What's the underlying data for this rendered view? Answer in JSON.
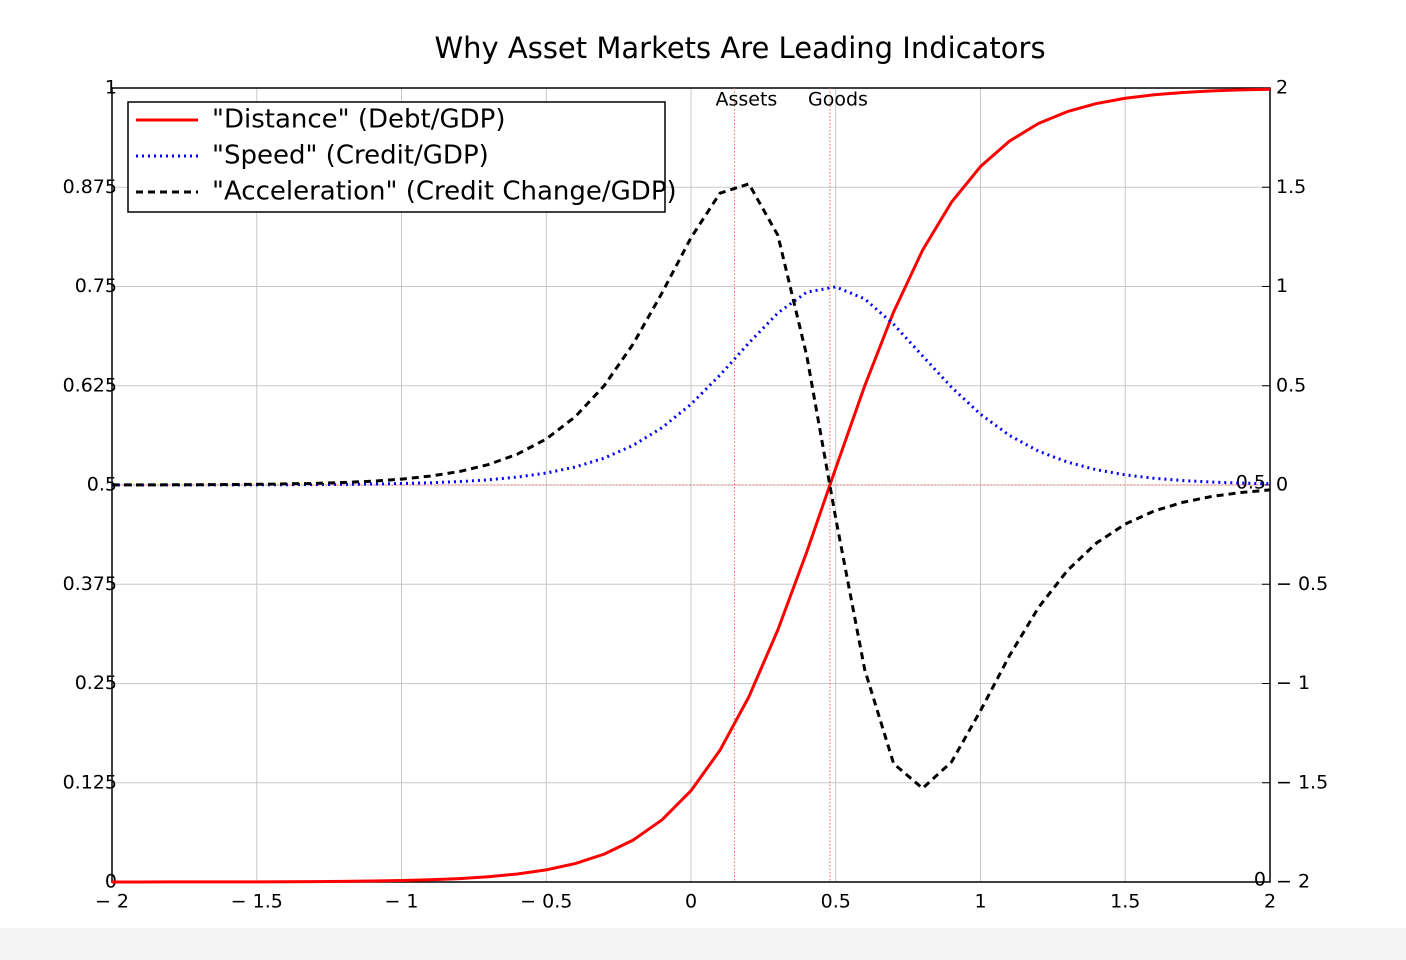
{
  "chart_data": {
    "type": "line",
    "title": "Why Asset Markets Are Leading Indicators",
    "x": [
      -2,
      -1.9,
      -1.8,
      -1.7,
      -1.6,
      -1.5,
      -1.4,
      -1.3,
      -1.2,
      -1.1,
      -1,
      -0.9,
      -0.8,
      -0.7,
      -0.6,
      -0.5,
      -0.4,
      -0.3,
      -0.2,
      -0.1,
      0,
      0.1,
      0.2,
      0.3,
      0.4,
      0.5,
      0.6,
      0.7,
      0.8,
      0.9,
      1,
      1.1,
      1.2,
      1.3,
      1.4,
      1.5,
      1.6,
      1.7,
      1.8,
      1.9,
      2
    ],
    "series": [
      {
        "name": "\"Distance\" (Debt/GDP)",
        "color": "#ff0000",
        "dash": "solid",
        "axis": "y",
        "values": [
          0,
          0,
          0.0001,
          0.0001,
          0.0001,
          0.0002,
          0.0003,
          0.0005,
          0.0008,
          0.0012,
          0.0019,
          0.0028,
          0.0043,
          0.0066,
          0.0101,
          0.0153,
          0.0232,
          0.0351,
          0.0527,
          0.0783,
          0.115,
          0.1659,
          0.2333,
          0.3175,
          0.4158,
          0.5212,
          0.6248,
          0.7181,
          0.7958,
          0.8563,
          0.9011,
          0.9331,
          0.9553,
          0.9703,
          0.9804,
          0.9871,
          0.9915,
          0.9944,
          0.9964,
          0.9976,
          0.9984
        ]
      },
      {
        "name": "\"Speed\" (Credit/GDP)",
        "color": "#0000ff",
        "dash": "dotted",
        "axis": "y2",
        "values": [
          0.0001,
          0.0002,
          0.0002,
          0.0004,
          0.0006,
          0.0009,
          0.0014,
          0.0021,
          0.0032,
          0.0048,
          0.0074,
          0.0113,
          0.0172,
          0.0262,
          0.0398,
          0.0602,
          0.0906,
          0.1353,
          0.1996,
          0.2887,
          0.407,
          0.5535,
          0.7155,
          0.8668,
          0.9716,
          0.9982,
          0.9376,
          0.8097,
          0.65,
          0.4923,
          0.3565,
          0.2497,
          0.1708,
          0.1153,
          0.0769,
          0.0509,
          0.0337,
          0.0222,
          0.0146,
          0.0096,
          0.0062
        ]
      },
      {
        "name": "\"Acceleration\" (Credit Change/GDP)",
        "color": "#000000",
        "dash": "dashed",
        "axis": "y2",
        "values": [
          0.0004,
          0.0006,
          0.001,
          0.0015,
          0.0023,
          0.0035,
          0.0054,
          0.0082,
          0.0126,
          0.0192,
          0.0295,
          0.045,
          0.0678,
          0.1029,
          0.155,
          0.232,
          0.3436,
          0.5,
          0.71,
          0.968,
          1.246,
          1.47,
          1.517,
          1.258,
          0.65,
          -0.168,
          -0.93,
          -1.404,
          -1.528,
          -1.395,
          -1.137,
          -0.86,
          -0.618,
          -0.431,
          -0.293,
          -0.197,
          -0.131,
          -0.0868,
          -0.0573,
          -0.0378,
          -0.0247
        ]
      }
    ],
    "xlim": [
      -2,
      2
    ],
    "xticks": [
      {
        "value": -2,
        "label": "− 2"
      },
      {
        "value": -1.5,
        "label": "− 1.5"
      },
      {
        "value": -1,
        "label": "− 1"
      },
      {
        "value": -0.5,
        "label": "− 0.5"
      },
      0,
      0.5,
      1,
      1.5,
      2
    ],
    "ylim": [
      0,
      1
    ],
    "yticks": [
      0,
      0.125,
      0.25,
      0.375,
      0.5,
      0.625,
      0.75,
      0.875,
      1
    ],
    "y2lim": [
      -2,
      2
    ],
    "y2ticks": [
      {
        "value": -2,
        "label": "− 2"
      },
      {
        "value": -1.5,
        "label": "− 1.5"
      },
      {
        "value": -1,
        "label": "− 1"
      },
      {
        "value": -0.5,
        "label": "− 0.5"
      },
      0,
      0.5,
      1,
      1.5,
      2
    ],
    "grid": true,
    "legend": "upper left",
    "vlines": [
      {
        "x": 0.15,
        "label": "Assets"
      },
      {
        "x": 0.48,
        "label": "Goods"
      }
    ],
    "hline": 0.5,
    "right_labels": [
      {
        "y": 0.5,
        "text": "0.5"
      },
      {
        "y": 0,
        "text": "0"
      }
    ]
  }
}
